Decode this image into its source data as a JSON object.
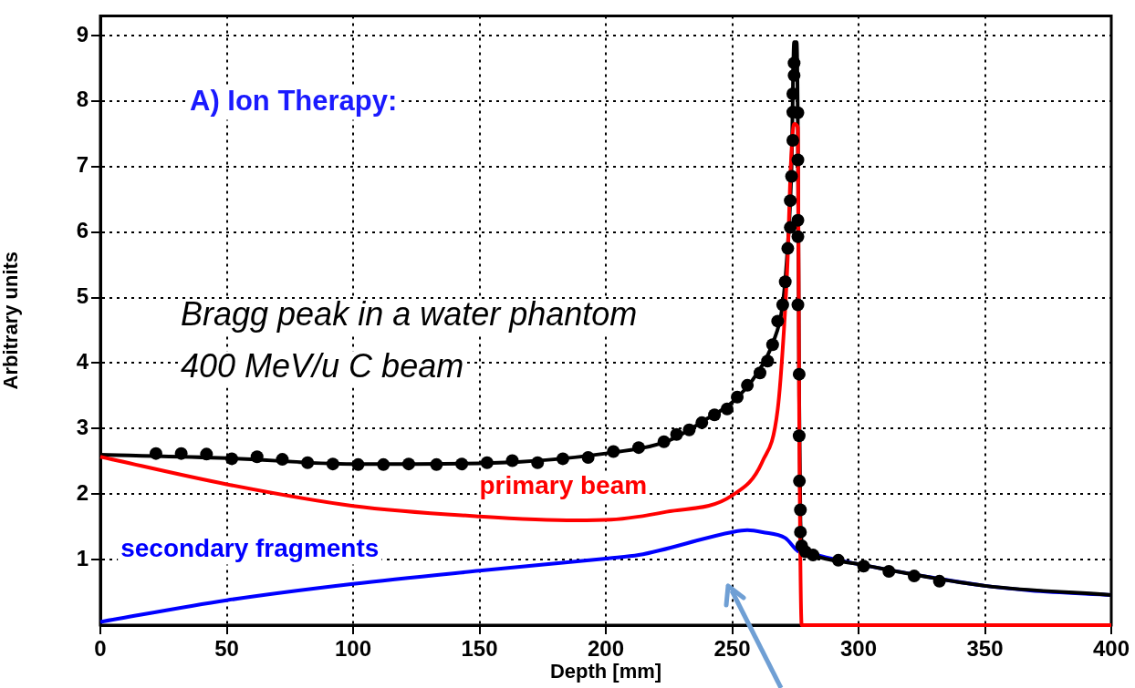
{
  "chart_data": {
    "type": "line",
    "title": "A) Ion Therapy:",
    "xlabel": "Depth [mm]",
    "ylabel": "Arbitrary units",
    "annotations": [
      "Bragg peak in a water phantom",
      "400 MeV/u C beam"
    ],
    "xlim": [
      0,
      400
    ],
    "xticks": [
      0,
      50,
      100,
      150,
      200,
      250,
      300,
      350,
      400
    ],
    "ylim": [
      0,
      9.3
    ],
    "yticks": [
      1,
      2,
      3,
      4,
      5,
      6,
      7,
      8,
      9
    ],
    "grid": true,
    "series": [
      {
        "name": "secondary fragments",
        "color": "#0000ff",
        "marker": "none",
        "x": [
          0,
          50,
          100,
          150,
          201,
          213,
          250,
          256,
          262,
          271,
          276,
          283,
          300,
          350,
          368,
          400
        ],
        "values": [
          0.05,
          0.38,
          0.63,
          0.83,
          1.02,
          1.07,
          1.42,
          1.45,
          1.42,
          1.33,
          1.13,
          1.07,
          0.93,
          0.6,
          0.53,
          0.46
        ]
      },
      {
        "color": "#000000",
        "marker": "none",
        "x": [
          0,
          50,
          100,
          150,
          200,
          225,
          240,
          250,
          260,
          266,
          270,
          272,
          273.5,
          274.5,
          275.5,
          276,
          276.5,
          277,
          278,
          282,
          300,
          350,
          400
        ],
        "values": [
          2.6,
          2.55,
          2.46,
          2.47,
          2.62,
          2.82,
          3.15,
          3.4,
          3.85,
          4.3,
          4.9,
          5.8,
          7.0,
          8.9,
          8.9,
          7.5,
          3.5,
          1.6,
          1.2,
          1.07,
          0.93,
          0.6,
          0.46
        ]
      },
      {
        "name": "primary beam",
        "color": "#ff0000",
        "marker": "none",
        "x": [
          0,
          50,
          100,
          150,
          188,
          202,
          224,
          250,
          262,
          268,
          270.5,
          272,
          273,
          274.5,
          276,
          276.5,
          277.5,
          400
        ],
        "values": [
          2.57,
          2.15,
          1.82,
          1.66,
          1.6,
          1.61,
          1.73,
          1.98,
          2.5,
          3.29,
          4.52,
          5.63,
          6.85,
          7.65,
          7.6,
          3.3,
          0,
          0
        ]
      },
      {
        "color": "#000000",
        "type": "scatter",
        "marker": "circle",
        "x": [
          22,
          32,
          42,
          52,
          62,
          72,
          82,
          92,
          102,
          112,
          122,
          133,
          143,
          153,
          163,
          173,
          183,
          193,
          203,
          213,
          223,
          228,
          233,
          238,
          243,
          248,
          252,
          256,
          261,
          264,
          266,
          268,
          270,
          271,
          272,
          273,
          273,
          273.5,
          274,
          274,
          274,
          274.5,
          274.5,
          276,
          276,
          276,
          276,
          276,
          276.5,
          276.5,
          276.6,
          277,
          277,
          277.5,
          279,
          282,
          292,
          302,
          312,
          322,
          332
        ],
        "values": [
          2.62,
          2.62,
          2.61,
          2.54,
          2.57,
          2.53,
          2.48,
          2.46,
          2.45,
          2.45,
          2.46,
          2.45,
          2.46,
          2.48,
          2.51,
          2.48,
          2.54,
          2.56,
          2.65,
          2.71,
          2.8,
          2.91,
          2.98,
          3.09,
          3.21,
          3.3,
          3.48,
          3.66,
          3.85,
          4.03,
          4.28,
          4.64,
          4.89,
          5.24,
          5.75,
          6.07,
          6.48,
          6.85,
          7.4,
          7.83,
          8.11,
          8.39,
          8.58,
          7.82,
          7.1,
          6.18,
          5.93,
          4.89,
          3.83,
          2.89,
          2.2,
          1.76,
          1.42,
          1.21,
          1.12,
          1.07,
          0.99,
          0.9,
          0.82,
          0.75,
          0.67
        ]
      }
    ]
  }
}
